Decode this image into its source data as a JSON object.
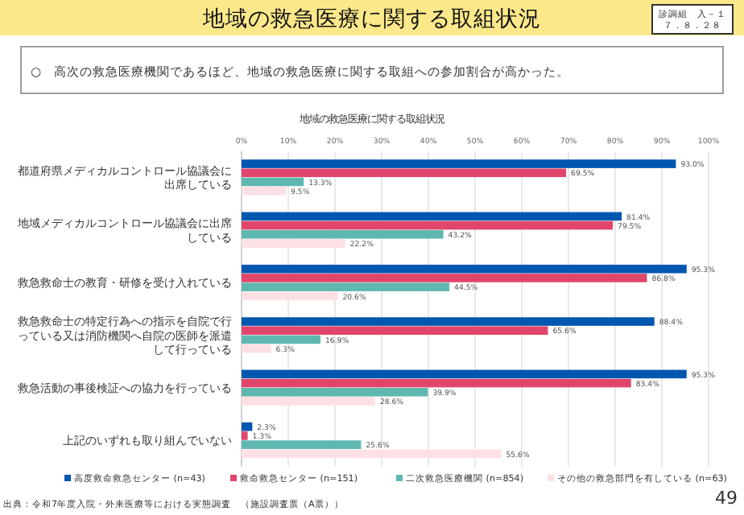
{
  "chart_data": {
    "type": "bar",
    "orientation": "horizontal",
    "title": "地域の救急医療に関する取組状況",
    "subtitle": "地域の救急医療に関する取組状況",
    "annotations": [
      "診調組　入－１７．８．２８",
      "○　高次の救急医療機関であるほど、地域の救急医療に関する取組への参加割合が高かった。",
      "出典：令和7年度入院・外来医療等における実態調査　（施設調査票（A票））",
      "49"
    ],
    "categories": [
      "都道府県メディカルコントロール協議会に出席している",
      "地域メディカルコントロール協議会に出席している",
      "救急救命士の教育・研修を受け入れている",
      "救急救命士の特定行為への指示を自院で行っている又は消防機関へ自院の医師を派遣して行っている",
      "救急活動の事後検証への協力を行っている",
      "上記のいずれも取り組んでいない"
    ],
    "series": [
      {
        "name": "高度救命救急センター (n=43)",
        "color": "#0057b0",
        "values": [
          93.0,
          81.4,
          95.3,
          88.4,
          95.3,
          2.3
        ],
        "value_labels": [
          "93.0%",
          "81.4%",
          "95.3%",
          "88.4%",
          "95.3%",
          "2.3%"
        ]
      },
      {
        "name": "救命救急センター (n=151)",
        "color": "#e0466b",
        "values": [
          69.5,
          79.5,
          86.8,
          65.6,
          83.4,
          1.3
        ],
        "value_labels": [
          "69.5%",
          "79.5%",
          "86.8%",
          "65.6%",
          "83.4%",
          "1.3%"
        ]
      },
      {
        "name": "二次救急医療機関 (n=854)",
        "color": "#5fb8b0",
        "values": [
          13.3,
          43.2,
          44.5,
          16.9,
          39.9,
          25.6
        ],
        "value_labels": [
          "13.3%",
          "43.2%",
          "44.5%",
          "16.9%",
          "39.9%",
          "25.6%"
        ]
      },
      {
        "name": "その他の救急部門を有している (n=63)",
        "color": "#fde0e4",
        "values": [
          9.5,
          22.2,
          20.6,
          6.3,
          28.6,
          55.6
        ],
        "value_labels": [
          "9.5%",
          "22.2%",
          "20.6%",
          "6.3%",
          "28.6%",
          "55.6%"
        ]
      }
    ],
    "xlim": [
      0,
      100
    ],
    "xticks": [
      {
        "value": 0,
        "label": "0%"
      },
      {
        "value": 10,
        "label": "10%"
      },
      {
        "value": 20,
        "label": "20%"
      },
      {
        "value": 30,
        "label": "30%"
      },
      {
        "value": 40,
        "label": "40%"
      },
      {
        "value": 50,
        "label": "50%"
      },
      {
        "value": 60,
        "label": "60%"
      },
      {
        "value": 70,
        "label": "70%"
      },
      {
        "value": 80,
        "label": "80%"
      },
      {
        "value": 90,
        "label": "90%"
      },
      {
        "value": 100,
        "label": "100%"
      }
    ],
    "grid": "x",
    "legend": "bottom"
  }
}
